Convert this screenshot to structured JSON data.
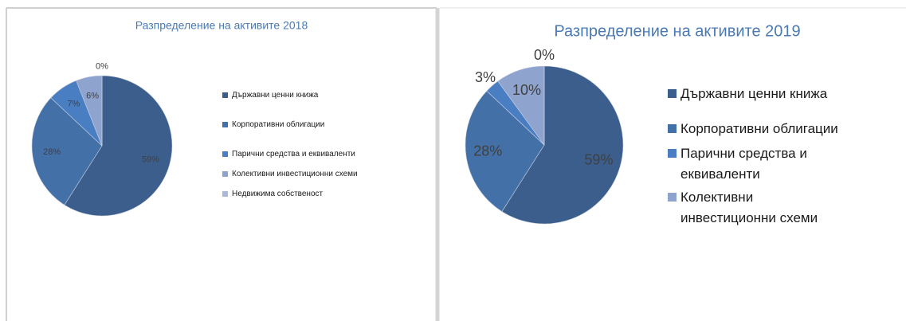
{
  "chart_data": [
    {
      "type": "pie",
      "title": "Разпределение на активите 2018",
      "categories": [
        "Държавни ценни книжа",
        "Корпоративни облигации",
        "Парични средства и еквиваленти",
        "Колективни инвестиционни схеми",
        "Недвижима собственост"
      ],
      "values": [
        59,
        28,
        7,
        6,
        0
      ],
      "value_labels": [
        "59%",
        "28%",
        "7%",
        "6%",
        "0%"
      ],
      "colors": [
        "#3b5e8c",
        "#4470a8",
        "#4a7ec2",
        "#8ea3cd",
        "#a9b9d9"
      ]
    },
    {
      "type": "pie",
      "title": "Разпределение на активите 2019",
      "categories": [
        "Държавни ценни книжа",
        "Корпоративни облигации",
        "Парични средства и еквиваленти",
        "Колективни инвестиционни схеми",
        null
      ],
      "values": [
        59,
        28,
        3,
        10,
        0
      ],
      "value_labels": [
        "59%",
        "28%",
        "3%",
        "10%",
        "0%"
      ],
      "colors": [
        "#3b5e8c",
        "#4470a8",
        "#4a7ec2",
        "#8ea3cd",
        "#a9b9d9"
      ]
    }
  ]
}
